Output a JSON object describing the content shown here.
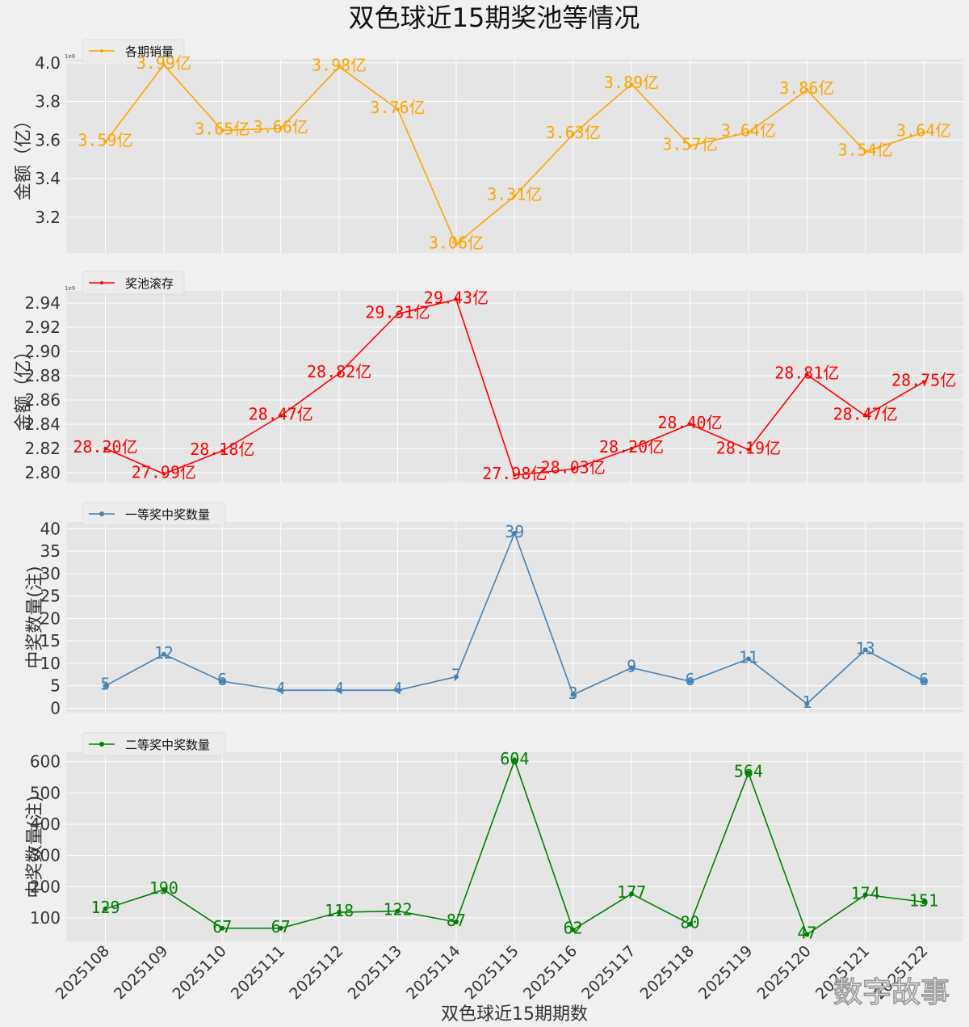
{
  "title": "双色球近15期奖池等情况",
  "xlabel": "双色球近15期期数",
  "watermark": "数字故事",
  "chart_data": [
    {
      "type": "line",
      "legend": "各期销量",
      "ylabel": "金额（亿）",
      "offset_text": "1e8",
      "color": "#FFA500",
      "ylim": [
        3.015,
        4.02
      ],
      "yticks": [
        3.2,
        3.4,
        3.6,
        3.8,
        4.0
      ],
      "ytick_labels": [
        "3.2",
        "3.4",
        "3.6",
        "3.8",
        "4.0"
      ],
      "values": [
        3.59,
        3.99,
        3.65,
        3.66,
        3.98,
        3.76,
        3.06,
        3.31,
        3.63,
        3.89,
        3.57,
        3.64,
        3.86,
        3.54,
        3.64
      ],
      "labels": [
        "3.59亿",
        "3.99亿",
        "3.65亿",
        "3.66亿",
        "3.98亿",
        "3.76亿",
        "3.06亿",
        "3.31亿",
        "3.63亿",
        "3.89亿",
        "3.57亿",
        "3.64亿",
        "3.86亿",
        "3.54亿",
        "3.64亿"
      ]
    },
    {
      "type": "line",
      "legend": "奖池滚存",
      "ylabel": "金额（亿）",
      "offset_text": "1e9",
      "color": "#FF0000",
      "ylim": [
        2.792,
        2.95
      ],
      "yticks": [
        2.8,
        2.82,
        2.84,
        2.86,
        2.88,
        2.9,
        2.92,
        2.94
      ],
      "ytick_labels": [
        "2.80",
        "2.82",
        "2.84",
        "2.86",
        "2.88",
        "2.90",
        "2.92",
        "2.94"
      ],
      "values": [
        2.82,
        2.799,
        2.818,
        2.847,
        2.882,
        2.931,
        2.943,
        2.798,
        2.803,
        2.82,
        2.84,
        2.819,
        2.881,
        2.847,
        2.875
      ],
      "labels": [
        "28.20亿",
        "27.99亿",
        "28.18亿",
        "28.47亿",
        "28.82亿",
        "29.31亿",
        "29.43亿",
        "27.98亿",
        "28.03亿",
        "28.20亿",
        "28.40亿",
        "28.19亿",
        "28.81亿",
        "28.47亿",
        "28.75亿"
      ]
    },
    {
      "type": "line",
      "legend": "一等奖中奖数量",
      "ylabel": "中奖数量(注)",
      "color": "#4682B4",
      "ylim": [
        -1,
        41.5
      ],
      "yticks": [
        0,
        5,
        10,
        15,
        20,
        25,
        30,
        35,
        40
      ],
      "ytick_labels": [
        "0",
        "5",
        "10",
        "15",
        "20",
        "25",
        "30",
        "35",
        "40"
      ],
      "values": [
        5,
        12,
        6,
        4,
        4,
        4,
        7,
        39,
        3,
        9,
        6,
        11,
        1,
        13,
        6
      ],
      "labels": [
        "5",
        "12",
        "6",
        "4",
        "4",
        "4",
        "7",
        "39",
        "3",
        "9",
        "6",
        "11",
        "1",
        "13",
        "6"
      ]
    },
    {
      "type": "line",
      "legend": "二等奖中奖数量",
      "ylabel": "中奖数量(注)",
      "color": "#008000",
      "ylim": [
        25,
        630
      ],
      "yticks": [
        100,
        200,
        300,
        400,
        500,
        600
      ],
      "ytick_labels": [
        "100",
        "200",
        "300",
        "400",
        "500",
        "600"
      ],
      "values": [
        129,
        190,
        67,
        67,
        118,
        122,
        87,
        604,
        62,
        177,
        80,
        564,
        47,
        174,
        151
      ],
      "labels": [
        "129",
        "190",
        "67",
        "67",
        "118",
        "122",
        "87",
        "604",
        "62",
        "177",
        "80",
        "564",
        "47",
        "174",
        "151"
      ]
    }
  ],
  "categories": [
    "2025108",
    "2025109",
    "2025110",
    "2025111",
    "2025112",
    "2025113",
    "2025114",
    "2025115",
    "2025116",
    "2025117",
    "2025118",
    "2025119",
    "2025120",
    "2025121",
    "2025122"
  ]
}
